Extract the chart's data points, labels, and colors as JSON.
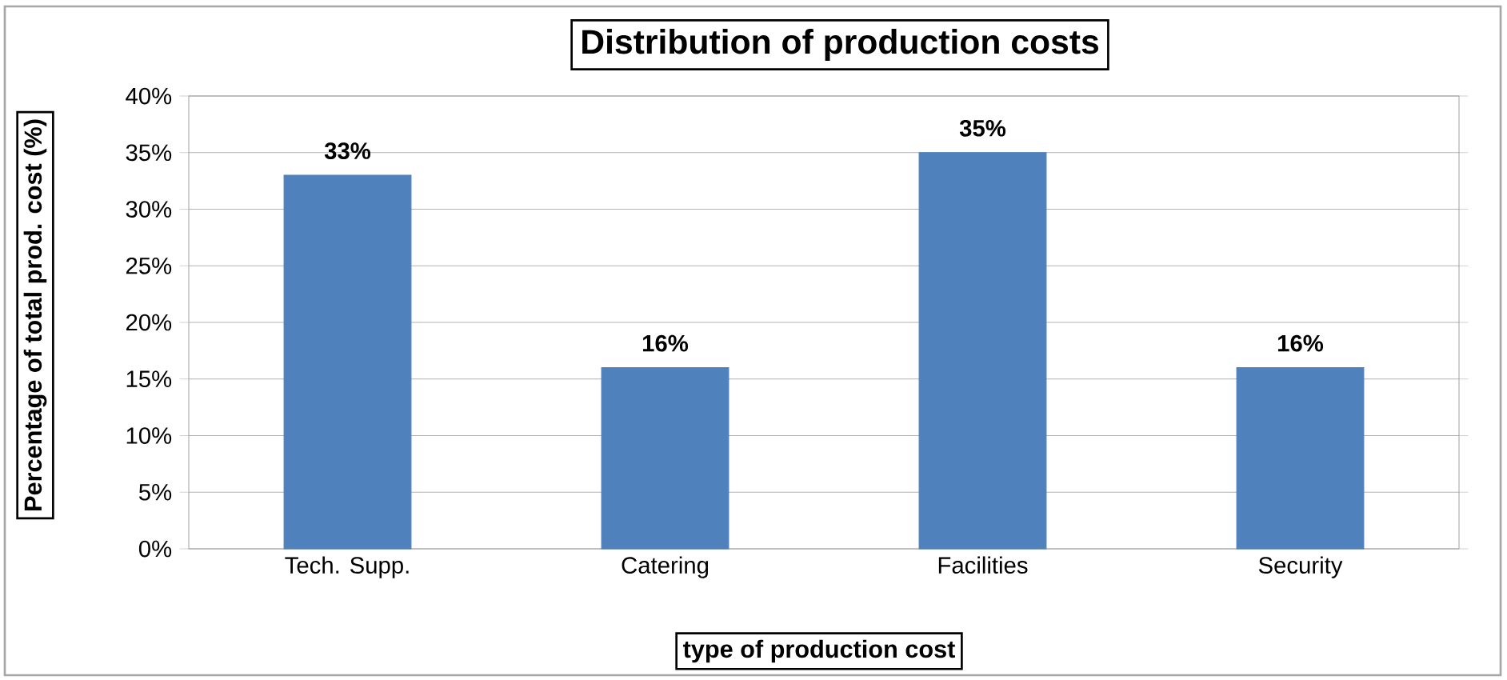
{
  "chart_data": {
    "type": "bar",
    "title": "Distribution of production costs",
    "xlabel": "type of production cost",
    "ylabel": "Percentage of total prod. cost (%)",
    "categories": [
      "Tech. Supp.",
      "Catering",
      "Facilities",
      "Security"
    ],
    "values": [
      33,
      16,
      35,
      16
    ],
    "color": "#4f81bd",
    "value_labels": [
      "33%",
      "16%",
      "35%",
      "16%"
    ],
    "ylim": [
      0,
      40
    ],
    "yticks": [
      {
        "value": 0,
        "label": "0%"
      },
      {
        "value": 5,
        "label": "5%"
      },
      {
        "value": 10,
        "label": "10%"
      },
      {
        "value": 15,
        "label": "15%"
      },
      {
        "value": 20,
        "label": "20%"
      },
      {
        "value": 25,
        "label": "25%"
      },
      {
        "value": 30,
        "label": "30%"
      },
      {
        "value": 35,
        "label": "35%"
      },
      {
        "value": 40,
        "label": "40%"
      }
    ],
    "grid": "y"
  }
}
